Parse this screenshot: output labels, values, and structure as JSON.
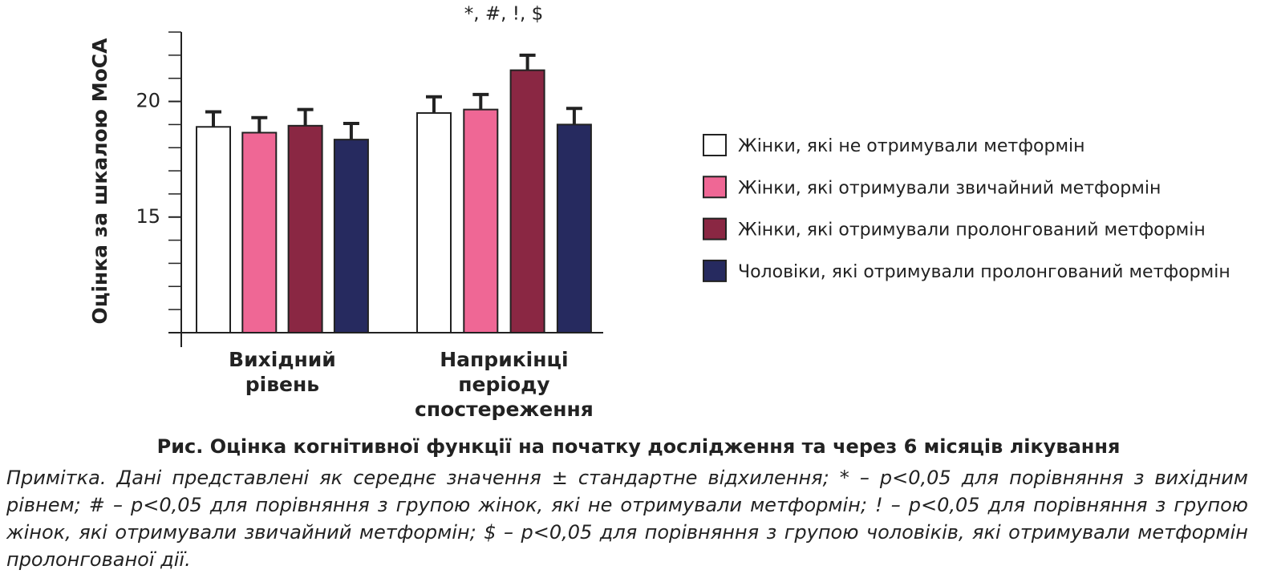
{
  "chart_data": {
    "type": "bar",
    "ylabel": "Оцінка за шкалою MoCA",
    "annotation": "*, #, !, $",
    "categories": [
      "Вихідний рівень",
      "Наприкінці періоду спостереження"
    ],
    "series": [
      {
        "name": "Жінки, які не отримували метформін",
        "color": "#ffffff",
        "values": [
          18.9,
          19.5
        ],
        "errors": [
          0.65,
          0.7
        ]
      },
      {
        "name": "Жінки, які отримували звичайний метформін",
        "color": "#ef6795",
        "values": [
          18.65,
          19.65
        ],
        "errors": [
          0.65,
          0.65
        ]
      },
      {
        "name": "Жінки, які отримували пролонгований метформін",
        "color": "#8a2743",
        "values": [
          18.95,
          21.35
        ],
        "errors": [
          0.7,
          0.65
        ]
      },
      {
        "name": "Чоловіки, які отримували пролонгований метформін",
        "color": "#262a5f",
        "values": [
          18.35,
          19.0
        ],
        "errors": [
          0.7,
          0.7
        ]
      }
    ],
    "ylim": [
      10,
      23
    ],
    "yticks": [
      15,
      20
    ],
    "minor_yticks": [
      11,
      12,
      13,
      14,
      16,
      17,
      18,
      19,
      21,
      22,
      23
    ],
    "caption": "Рис. Оцінка когнітивної функції на початку дослідження та через 6 місяців лікування",
    "note": "Примітка. Дані представлені як середнє значення ± стандартне відхилення; * – p<0,05 для порівняння з вихідним рівнем; # – p<0,05 для порівняння з групою жінок, які не отримували метформін; ! – p<0,05 для порівняння з групою жінок, які отримували звичайний метформін; $ – p<0,05 для порівняння з групою чоловіків, які отримували метформін пролонгованої дії."
  }
}
